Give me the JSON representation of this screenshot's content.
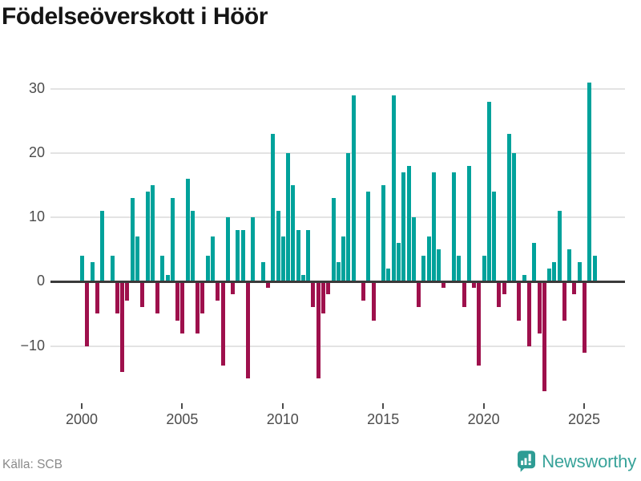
{
  "title": "Födelseöverskott i Höör",
  "source": "Källa: SCB",
  "branding": {
    "name": "Newsworthy",
    "icon": "bar-chart-speech-bubble-icon"
  },
  "colors": {
    "positive": "#00a29b",
    "negative": "#9e104c",
    "grid": "#e3e3e3",
    "zero_axis": "#3a3a3a",
    "title_text": "#151515",
    "tick_text": "#4c4c4c",
    "source_text": "#8a8a8a",
    "brand_teal": "#38a39a",
    "icon_teal": "#2e9c94"
  },
  "chart_data": {
    "type": "bar",
    "title": "Födelseöverskott i Höör",
    "frequency": "quarterly",
    "xlabel": "",
    "ylabel": "",
    "grid": "horizontal",
    "legend": "none",
    "ylim": [
      -17,
      31
    ],
    "y_ticks": [
      30,
      20,
      10,
      0,
      -10
    ],
    "y_tick_labels": [
      "30",
      "20",
      "10",
      "0",
      "−10"
    ],
    "x_tick_labels": [
      "2000",
      "2005",
      "2010",
      "2015",
      "2020",
      "2025"
    ],
    "years": [
      {
        "year": 2000,
        "quarters": [
          4,
          -10,
          3,
          -5
        ]
      },
      {
        "year": 2001,
        "quarters": [
          11,
          0,
          4,
          -5
        ]
      },
      {
        "year": 2002,
        "quarters": [
          -14,
          -3,
          13,
          7
        ]
      },
      {
        "year": 2003,
        "quarters": [
          -4,
          14,
          15,
          -5
        ]
      },
      {
        "year": 2004,
        "quarters": [
          4,
          1,
          13,
          -6
        ]
      },
      {
        "year": 2005,
        "quarters": [
          -8,
          16,
          11,
          -8
        ]
      },
      {
        "year": 2006,
        "quarters": [
          -5,
          4,
          7,
          -3
        ]
      },
      {
        "year": 2007,
        "quarters": [
          -13,
          10,
          -2,
          8
        ]
      },
      {
        "year": 2008,
        "quarters": [
          8,
          -15,
          10,
          0
        ]
      },
      {
        "year": 2009,
        "quarters": [
          3,
          -1,
          23,
          11
        ]
      },
      {
        "year": 2010,
        "quarters": [
          7,
          20,
          15,
          8
        ]
      },
      {
        "year": 2011,
        "quarters": [
          1,
          8,
          -4,
          -15
        ]
      },
      {
        "year": 2012,
        "quarters": [
          -5,
          -2,
          13,
          3
        ]
      },
      {
        "year": 2013,
        "quarters": [
          7,
          20,
          29,
          0
        ]
      },
      {
        "year": 2014,
        "quarters": [
          -3,
          14,
          -6,
          0
        ]
      },
      {
        "year": 2015,
        "quarters": [
          15,
          2,
          29,
          6
        ]
      },
      {
        "year": 2016,
        "quarters": [
          17,
          18,
          10,
          -4
        ]
      },
      {
        "year": 2017,
        "quarters": [
          4,
          7,
          17,
          5
        ]
      },
      {
        "year": 2018,
        "quarters": [
          -1,
          0,
          17,
          4
        ]
      },
      {
        "year": 2019,
        "quarters": [
          -4,
          18,
          -1,
          -13
        ]
      },
      {
        "year": 2020,
        "quarters": [
          4,
          28,
          14,
          -4
        ]
      },
      {
        "year": 2021,
        "quarters": [
          -2,
          23,
          20,
          -6
        ]
      },
      {
        "year": 2022,
        "quarters": [
          1,
          -10,
          6,
          -8
        ]
      },
      {
        "year": 2023,
        "quarters": [
          -17,
          2,
          3,
          11
        ]
      },
      {
        "year": 2024,
        "quarters": [
          -6,
          5,
          -2,
          3
        ]
      },
      {
        "year": 2025,
        "quarters": [
          -11,
          31,
          4
        ]
      }
    ]
  }
}
